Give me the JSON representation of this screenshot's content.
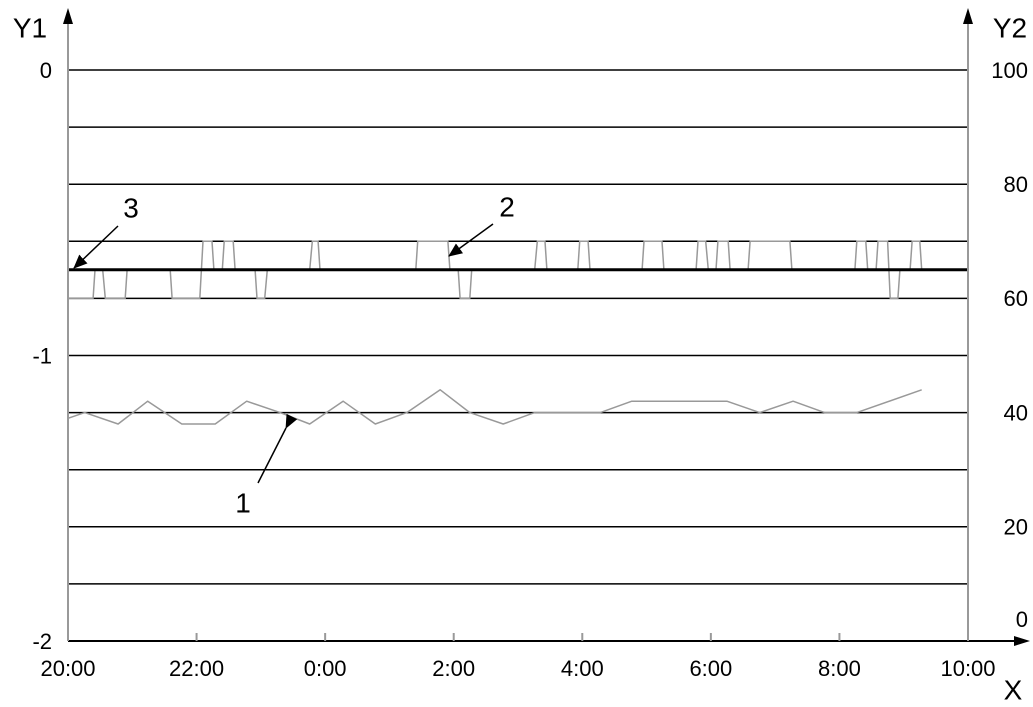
{
  "chart_data": {
    "type": "line",
    "ylabel": "Y1",
    "y2label": "Y2",
    "xlabel": "X",
    "xlim": [
      20,
      34
    ],
    "xticks": [
      {
        "value": 20,
        "label": "20:00"
      },
      {
        "value": 22,
        "label": "22:00"
      },
      {
        "value": 24,
        "label": "0:00"
      },
      {
        "value": 26,
        "label": "2:00"
      },
      {
        "value": 28,
        "label": "4:00"
      },
      {
        "value": 30,
        "label": "6:00"
      },
      {
        "value": 32,
        "label": "8:00"
      },
      {
        "value": 34,
        "label": "10:00"
      }
    ],
    "ylim": [
      -2,
      0
    ],
    "yticks": [
      0,
      -1,
      -2
    ],
    "y2lim": [
      0,
      100
    ],
    "y2ticks": [
      100,
      80,
      60,
      40,
      20,
      0
    ],
    "y2grid": [
      10,
      20,
      30,
      40,
      50,
      60,
      70,
      80,
      90,
      100
    ],
    "grid": true,
    "annotations": [
      {
        "text": "1"
      },
      {
        "text": "2"
      },
      {
        "text": "3"
      }
    ],
    "series": [
      {
        "color": "#999999",
        "width": 1.5,
        "axis": "y2",
        "x": [
          20.0,
          20.26,
          20.78,
          21.24,
          21.77,
          22.29,
          22.78,
          23.3,
          23.76,
          24.28,
          24.78,
          25.27,
          25.79,
          26.25,
          26.77,
          27.26,
          28.28,
          28.77,
          30.25,
          30.76,
          31.28,
          31.77,
          32.27,
          33.28
        ],
        "values": [
          39,
          40,
          38,
          42,
          38,
          38,
          42,
          40,
          38,
          42,
          38,
          40,
          44,
          40,
          38,
          40,
          40,
          42,
          42,
          40,
          42,
          40,
          40,
          44
        ]
      },
      {
        "color": "#999999",
        "width": 1.5,
        "axis": "y2",
        "x": [
          20.0,
          20.39,
          20.42,
          20.54,
          20.58,
          20.89,
          20.92,
          21.59,
          21.62,
          22.05,
          22.1,
          22.24,
          22.27,
          22.4,
          22.43,
          22.57,
          22.6,
          22.91,
          22.94,
          23.06,
          23.1,
          23.76,
          23.8,
          23.89,
          23.92,
          25.41,
          25.44,
          25.91,
          25.94,
          26.07,
          26.1,
          26.25,
          26.28,
          27.26,
          27.3,
          27.42,
          27.45,
          27.93,
          27.96,
          28.09,
          28.12,
          28.93,
          28.96,
          29.24,
          29.27,
          29.77,
          29.8,
          29.92,
          29.96,
          30.08,
          30.11,
          30.27,
          30.3,
          30.58,
          30.61,
          31.23,
          31.26,
          32.24,
          32.27,
          32.41,
          32.44,
          32.57,
          32.6,
          32.75,
          32.79,
          32.91,
          32.94,
          33.1,
          33.13,
          33.25,
          33.28,
          33.56
        ],
        "values": [
          60,
          60,
          65,
          65,
          60,
          60,
          65,
          65,
          60,
          60,
          70,
          70,
          65,
          65,
          70,
          70,
          65,
          65,
          60,
          60,
          65,
          65,
          70,
          70,
          65,
          65,
          70,
          70,
          65,
          65,
          60,
          60,
          65,
          65,
          70,
          70,
          65,
          65,
          70,
          70,
          65,
          65,
          70,
          70,
          65,
          65,
          70,
          70,
          65,
          65,
          70,
          70,
          65,
          65,
          70,
          70,
          65,
          65,
          70,
          70,
          65,
          65,
          70,
          70,
          60,
          60,
          65,
          65,
          70,
          70,
          65,
          65
        ]
      },
      {
        "color": "#000000",
        "width": 3,
        "axis": "y2",
        "x": [
          20,
          34
        ],
        "values": [
          65,
          65
        ]
      }
    ]
  }
}
